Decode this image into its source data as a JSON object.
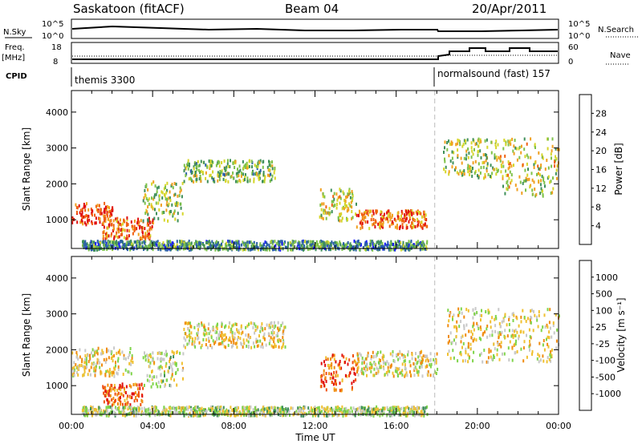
{
  "header": {
    "title": "Saskatoon (fitACF)",
    "beam": "Beam 04",
    "date": "20/Apr/2011"
  },
  "top_panels": {
    "nsky_label": "N.Sky",
    "nsky_ticks": [
      "10^5",
      "10^0"
    ],
    "nsearch_label": "N.Search",
    "nsearch_ticks": [
      "10^5",
      "10^0"
    ],
    "freq_label": "Freq.",
    "freq_unit": "[MHz]",
    "freq_ticks": [
      "18",
      "8"
    ],
    "nave_label": "Nave",
    "nave_ticks": [
      "60",
      "0"
    ],
    "cpid_label": "CPID",
    "cpid_segments": [
      {
        "name": "themis 3300"
      },
      {
        "name": "normalsound (fast) 157"
      }
    ]
  },
  "chart_data": [
    {
      "type": "heatmap",
      "title": "",
      "xlabel": "",
      "ylabel": "Slant Range [km]",
      "x_ticks": [
        "00:00",
        "04:00",
        "08:00",
        "12:00",
        "16:00",
        "20:00",
        "00:00"
      ],
      "y_ticks": [
        "1000",
        "2000",
        "3000",
        "4000"
      ],
      "ylim": [
        200,
        4600
      ],
      "xlim_hours": [
        0,
        24
      ],
      "mode_change_hour": 17.9,
      "colorbar": {
        "label": "Power [dB]",
        "ticks": [
          "4",
          "8",
          "12",
          "16",
          "20",
          "24",
          "28"
        ],
        "range": [
          0,
          30
        ],
        "colors": [
          "#1a1aff",
          "#2a5fa8",
          "#3f8f5a",
          "#7fc24a",
          "#d6d62a",
          "#f0a020",
          "#f06010",
          "#e01010"
        ]
      },
      "bands": [
        {
          "t0": 0.0,
          "t1": 2.0,
          "r0": 900,
          "r1": 1500,
          "level": 0.85
        },
        {
          "t0": 1.5,
          "t1": 4.0,
          "r0": 500,
          "r1": 1100,
          "level": 0.8
        },
        {
          "t0": 3.5,
          "t1": 5.5,
          "r0": 1000,
          "r1": 2100,
          "level": 0.5
        },
        {
          "t0": 5.5,
          "t1": 10.0,
          "r0": 2100,
          "r1": 2700,
          "level": 0.45
        },
        {
          "t0": 12.2,
          "t1": 14.0,
          "r0": 1000,
          "r1": 1900,
          "level": 0.55
        },
        {
          "t0": 14.0,
          "t1": 17.5,
          "r0": 800,
          "r1": 1300,
          "level": 0.8
        },
        {
          "t0": 18.3,
          "t1": 21.0,
          "r0": 2200,
          "r1": 3300,
          "level": 0.5
        },
        {
          "t0": 21.0,
          "t1": 24.0,
          "r0": 1700,
          "r1": 3300,
          "level": 0.55
        },
        {
          "t0": 0.5,
          "t1": 17.5,
          "r0": 200,
          "r1": 450,
          "level": 0.3
        }
      ]
    },
    {
      "type": "heatmap",
      "title": "",
      "xlabel": "Time UT",
      "ylabel": "Slant Range [km]",
      "x_ticks": [
        "00:00",
        "04:00",
        "08:00",
        "12:00",
        "16:00",
        "20:00",
        "00:00"
      ],
      "y_ticks": [
        "1000",
        "2000",
        "3000",
        "4000"
      ],
      "ylim": [
        200,
        4600
      ],
      "xlim_hours": [
        0,
        24
      ],
      "mode_change_hour": 17.9,
      "colorbar": {
        "label": "Velocity [m s⁻¹]",
        "ticks": [
          "-1000",
          "-500",
          "-100",
          "-25",
          "25",
          "100",
          "500",
          "1000"
        ],
        "range": [
          -1200,
          1200
        ],
        "colors": [
          "#e01010",
          "#f05010",
          "#f08c10",
          "#f0c030",
          "#c8c8c8",
          "#7fd44a",
          "#3f8f5a",
          "#1a3fff"
        ]
      },
      "bands": [
        {
          "t0": 0.0,
          "t1": 3.0,
          "r0": 1300,
          "r1": 2100,
          "level": 0.5
        },
        {
          "t0": 1.5,
          "t1": 3.5,
          "r0": 500,
          "r1": 1100,
          "level": 0.22
        },
        {
          "t0": 3.5,
          "t1": 5.5,
          "r0": 1000,
          "r1": 2000,
          "level": 0.55
        },
        {
          "t0": 5.5,
          "t1": 10.5,
          "r0": 2100,
          "r1": 2800,
          "level": 0.5
        },
        {
          "t0": 12.2,
          "t1": 14.0,
          "r0": 900,
          "r1": 1900,
          "level": 0.25
        },
        {
          "t0": 14.0,
          "t1": 18.0,
          "r0": 1300,
          "r1": 2000,
          "level": 0.5
        },
        {
          "t0": 18.5,
          "t1": 24.0,
          "r0": 1700,
          "r1": 3200,
          "level": 0.5
        },
        {
          "t0": 0.5,
          "t1": 17.5,
          "r0": 200,
          "r1": 450,
          "level": 0.6
        }
      ]
    }
  ]
}
